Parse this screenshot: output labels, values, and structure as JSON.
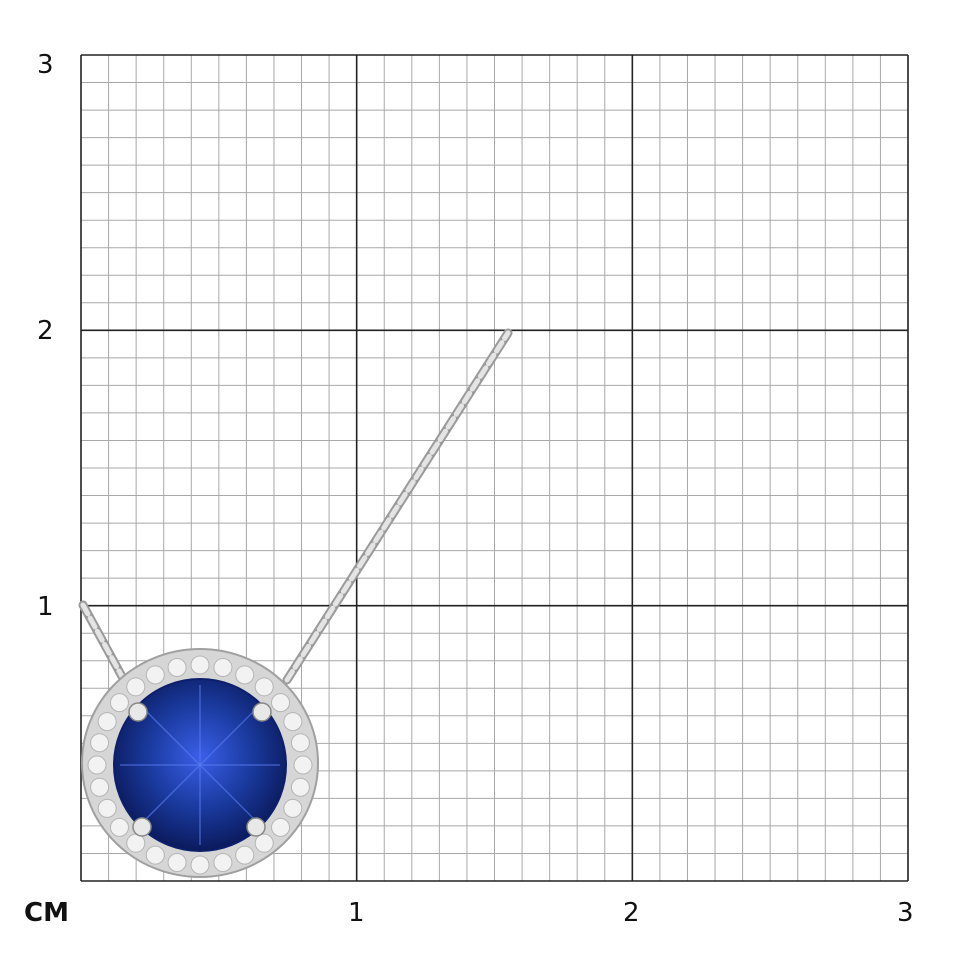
{
  "scale": {
    "unit_label": "CM",
    "x_ticks": [
      "1",
      "2",
      "3"
    ],
    "y_ticks": [
      "1",
      "2",
      "3"
    ],
    "range_cm": [
      0,
      3
    ],
    "minor_divisions_per_cm": 10
  },
  "colors": {
    "minor_grid": "#a8a8a8",
    "major_grid": "#222222",
    "sapphire": "#1a3a9e",
    "metal": "#d6d6d6"
  },
  "product": {
    "type": "sapphire halo pendant necklace",
    "icon": "pendant-photo"
  }
}
